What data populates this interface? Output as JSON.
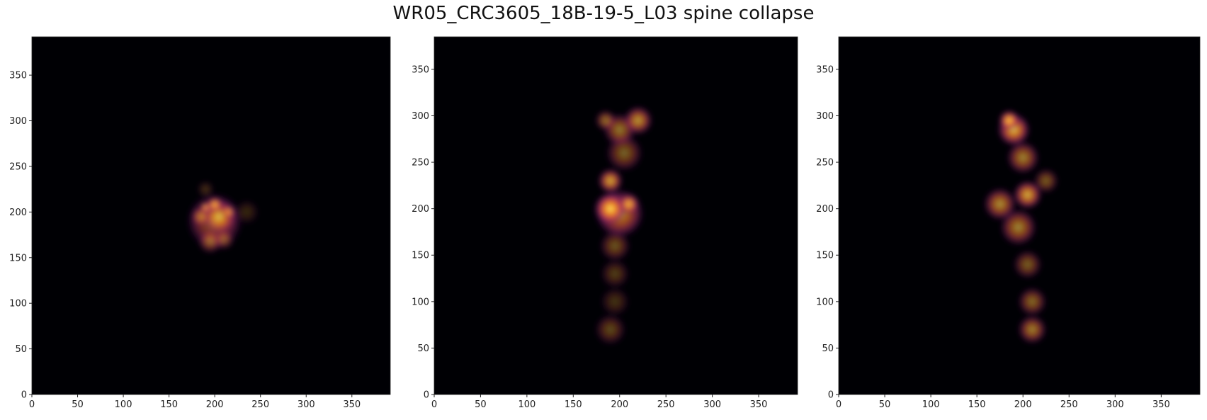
{
  "title": "WR05_CRC3605_18B-19-5_L03 spine collapse",
  "colormap": {
    "name": "inferno",
    "background": "#000004",
    "low": "#420a68",
    "mid": "#932667",
    "high": "#dd513a",
    "peak": "#fca50a",
    "max": "#fcffa4"
  },
  "chart_data": [
    {
      "type": "heatmap",
      "title": "",
      "xlabel": "",
      "ylabel": "",
      "xlim": [
        0,
        392
      ],
      "ylim": [
        0,
        392
      ],
      "xticks": [
        "0",
        "50",
        "100",
        "150",
        "200",
        "250",
        "300",
        "350"
      ],
      "yticks": [
        "0",
        "50",
        "100",
        "150",
        "200",
        "250",
        "300",
        "350"
      ],
      "blobs": [
        {
          "x": 190,
          "y": 225,
          "r": 8,
          "v": 0.25
        },
        {
          "x": 235,
          "y": 200,
          "r": 12,
          "v": 0.2
        },
        {
          "x": 200,
          "y": 190,
          "r": 28,
          "v": 0.55
        },
        {
          "x": 205,
          "y": 195,
          "r": 18,
          "v": 0.7
        },
        {
          "x": 195,
          "y": 168,
          "r": 12,
          "v": 0.5
        },
        {
          "x": 210,
          "y": 170,
          "r": 10,
          "v": 0.45
        },
        {
          "x": 185,
          "y": 195,
          "r": 10,
          "v": 0.55
        },
        {
          "x": 200,
          "y": 208,
          "r": 8,
          "v": 0.92
        },
        {
          "x": 190,
          "y": 205,
          "r": 5,
          "v": 1.0
        },
        {
          "x": 215,
          "y": 200,
          "r": 7,
          "v": 0.75
        }
      ]
    },
    {
      "type": "heatmap",
      "title": "",
      "xlabel": "",
      "ylabel": "",
      "xlim": [
        0,
        392
      ],
      "ylim": [
        0,
        385
      ],
      "xticks": [
        "0",
        "50",
        "100",
        "150",
        "200",
        "250",
        "300",
        "350"
      ],
      "yticks": [
        "0",
        "50",
        "100",
        "150",
        "200",
        "250",
        "300",
        "350"
      ],
      "blobs": [
        {
          "x": 190,
          "y": 70,
          "r": 15,
          "v": 0.35
        },
        {
          "x": 195,
          "y": 100,
          "r": 14,
          "v": 0.25
        },
        {
          "x": 195,
          "y": 130,
          "r": 14,
          "v": 0.3
        },
        {
          "x": 195,
          "y": 160,
          "r": 15,
          "v": 0.4
        },
        {
          "x": 200,
          "y": 195,
          "r": 24,
          "v": 0.7
        },
        {
          "x": 190,
          "y": 200,
          "r": 16,
          "v": 0.95
        },
        {
          "x": 210,
          "y": 205,
          "r": 10,
          "v": 0.85
        },
        {
          "x": 190,
          "y": 230,
          "r": 12,
          "v": 0.8
        },
        {
          "x": 205,
          "y": 260,
          "r": 18,
          "v": 0.45
        },
        {
          "x": 200,
          "y": 285,
          "r": 16,
          "v": 0.55
        },
        {
          "x": 220,
          "y": 295,
          "r": 14,
          "v": 0.7
        },
        {
          "x": 185,
          "y": 295,
          "r": 10,
          "v": 0.55
        }
      ]
    },
    {
      "type": "heatmap",
      "title": "",
      "xlabel": "",
      "ylabel": "",
      "xlim": [
        0,
        392
      ],
      "ylim": [
        0,
        385
      ],
      "xticks": [
        "0",
        "50",
        "100",
        "150",
        "200",
        "250",
        "300",
        "350"
      ],
      "yticks": [
        "0",
        "50",
        "100",
        "150",
        "200",
        "250",
        "300",
        "350"
      ],
      "blobs": [
        {
          "x": 210,
          "y": 70,
          "r": 14,
          "v": 0.6
        },
        {
          "x": 210,
          "y": 100,
          "r": 14,
          "v": 0.5
        },
        {
          "x": 205,
          "y": 140,
          "r": 14,
          "v": 0.45
        },
        {
          "x": 195,
          "y": 180,
          "r": 18,
          "v": 0.6
        },
        {
          "x": 175,
          "y": 205,
          "r": 16,
          "v": 0.65
        },
        {
          "x": 205,
          "y": 215,
          "r": 14,
          "v": 0.8
        },
        {
          "x": 225,
          "y": 230,
          "r": 12,
          "v": 0.45
        },
        {
          "x": 200,
          "y": 255,
          "r": 16,
          "v": 0.6
        },
        {
          "x": 190,
          "y": 285,
          "r": 16,
          "v": 0.85
        },
        {
          "x": 185,
          "y": 295,
          "r": 10,
          "v": 0.95
        }
      ]
    }
  ]
}
